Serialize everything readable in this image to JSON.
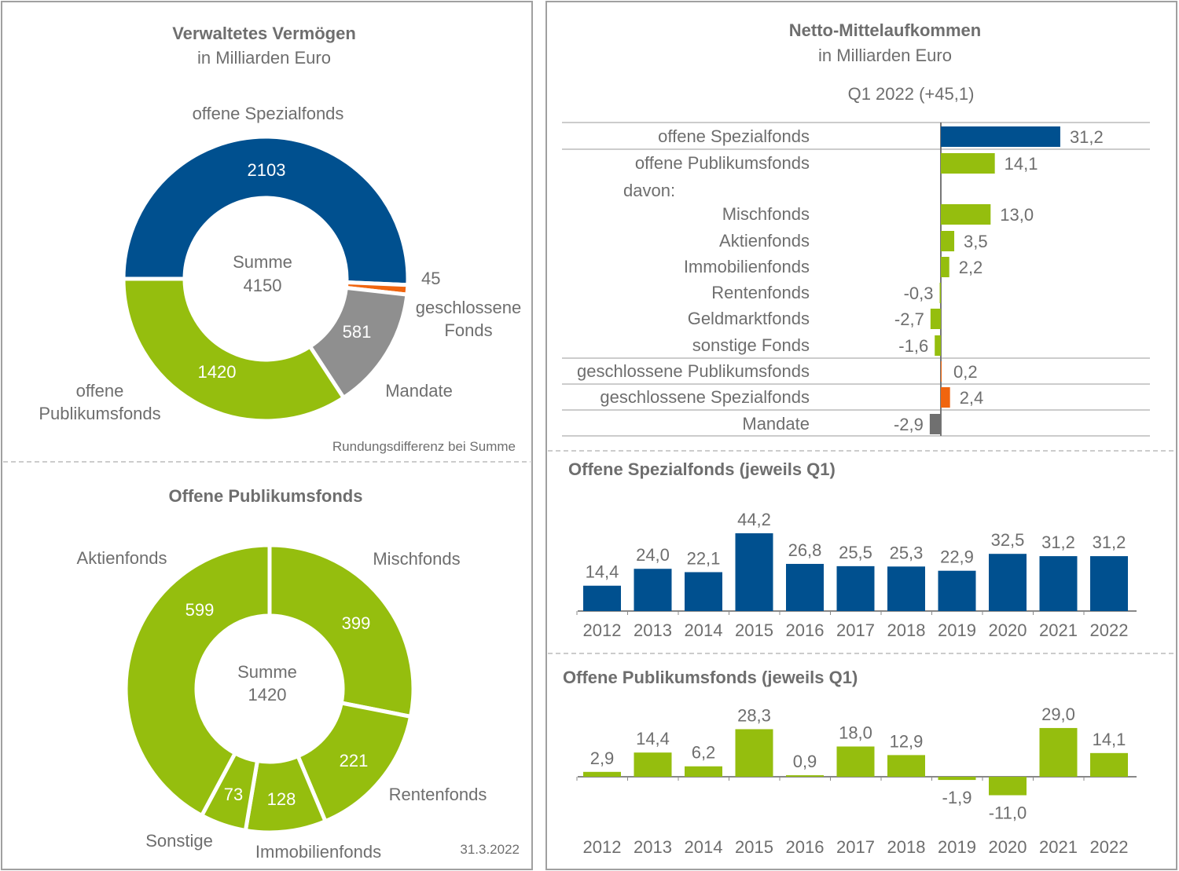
{
  "colors": {
    "blue": "#00508f",
    "green": "#95be0e",
    "grey": "#8f8f8f",
    "orange": "#f0650f",
    "text": "#6e6e6e"
  },
  "chart_data": [
    {
      "type": "pie",
      "title": "Verwaltetes Vermögen",
      "subtitle": "in Milliarden Euro",
      "center_label": "Summe",
      "center_value": "4150",
      "note": "Rundungsdifferenz bei Summe",
      "slices": [
        {
          "name": "offene Spezialfonds",
          "value": 2103,
          "label": "2103",
          "color": "#00508f"
        },
        {
          "name": "geschlossene Fonds",
          "name_lines": [
            "geschlossene",
            "Fonds"
          ],
          "value": 45,
          "label": "45",
          "color": "#f0650f"
        },
        {
          "name": "Mandate",
          "value": 581,
          "label": "581",
          "color": "#8f8f8f"
        },
        {
          "name": "offene Publikumsfonds",
          "name_lines": [
            "offene",
            "Publikumsfonds"
          ],
          "value": 1420,
          "label": "1420",
          "color": "#95be0e"
        }
      ]
    },
    {
      "type": "pie",
      "title": "Offene Publikumsfonds",
      "center_label": "Summe",
      "center_value": "1420",
      "date": "31.3.2022",
      "slices": [
        {
          "name": "Mischfonds",
          "value": 399,
          "label": "399"
        },
        {
          "name": "Rentenfonds",
          "value": 221,
          "label": "221"
        },
        {
          "name": "Immobilienfonds",
          "value": 128,
          "label": "128"
        },
        {
          "name": "Sonstige",
          "value": 73,
          "label": "73"
        },
        {
          "name": "Aktienfonds",
          "value": 599,
          "label": "599"
        }
      ]
    },
    {
      "type": "bar",
      "orientation": "horizontal",
      "title": "Netto-Mittelaufkommen",
      "subtitle": "in Milliarden Euro",
      "period": "Q1 2022 (+45,1)",
      "davon_label": "davon:",
      "rows": [
        {
          "name": "offene Spezialfonds",
          "value": 31.2,
          "label": "31,2",
          "color": "#00508f"
        },
        {
          "name": "offene Publikumsfonds",
          "value": 14.1,
          "label": "14,1",
          "color": "#95be0e"
        },
        {
          "name": "Mischfonds",
          "value": 13.0,
          "label": "13,0",
          "color": "#95be0e"
        },
        {
          "name": "Aktienfonds",
          "value": 3.5,
          "label": "3,5",
          "color": "#95be0e"
        },
        {
          "name": "Immobilienfonds",
          "value": 2.2,
          "label": "2,2",
          "color": "#95be0e"
        },
        {
          "name": "Rentenfonds",
          "value": -0.3,
          "label": "-0,3",
          "color": "#95be0e"
        },
        {
          "name": "Geldmarktfonds",
          "value": -2.7,
          "label": "-2,7",
          "color": "#95be0e"
        },
        {
          "name": "sonstige Fonds",
          "value": -1.6,
          "label": "-1,6",
          "color": "#95be0e"
        },
        {
          "name": "geschlossene Publikumsfonds",
          "value": 0.2,
          "label": "0,2",
          "color": "#f0650f"
        },
        {
          "name": "geschlossene Spezialfonds",
          "value": 2.4,
          "label": "2,4",
          "color": "#f0650f"
        },
        {
          "name": "Mandate",
          "value": -2.9,
          "label": "-2,9",
          "color": "#707070"
        }
      ]
    },
    {
      "type": "bar",
      "title": "Offene Spezialfonds (jeweils Q1)",
      "categories": [
        "2012",
        "2013",
        "2014",
        "2015",
        "2016",
        "2017",
        "2018",
        "2019",
        "2020",
        "2021",
        "2022"
      ],
      "values": [
        14.4,
        24.0,
        22.1,
        44.2,
        26.8,
        25.5,
        25.3,
        22.9,
        32.5,
        31.2,
        31.2
      ],
      "labels": [
        "14,4",
        "24,0",
        "22,1",
        "44,2",
        "26,8",
        "25,5",
        "25,3",
        "22,9",
        "32,5",
        "31,2",
        "31,2"
      ],
      "color": "#00508f"
    },
    {
      "type": "bar",
      "title": "Offene Publikumsfonds (jeweils Q1)",
      "categories": [
        "2012",
        "2013",
        "2014",
        "2015",
        "2016",
        "2017",
        "2018",
        "2019",
        "2020",
        "2021",
        "2022"
      ],
      "values": [
        2.9,
        14.4,
        6.2,
        28.3,
        0.9,
        18.0,
        12.9,
        -1.9,
        -11.0,
        29.0,
        14.1
      ],
      "labels": [
        "2,9",
        "14,4",
        "6,2",
        "28,3",
        "0,9",
        "18,0",
        "12,9",
        "-1,9",
        "-11,0",
        "29,0",
        "14,1"
      ],
      "color": "#95be0e"
    }
  ]
}
